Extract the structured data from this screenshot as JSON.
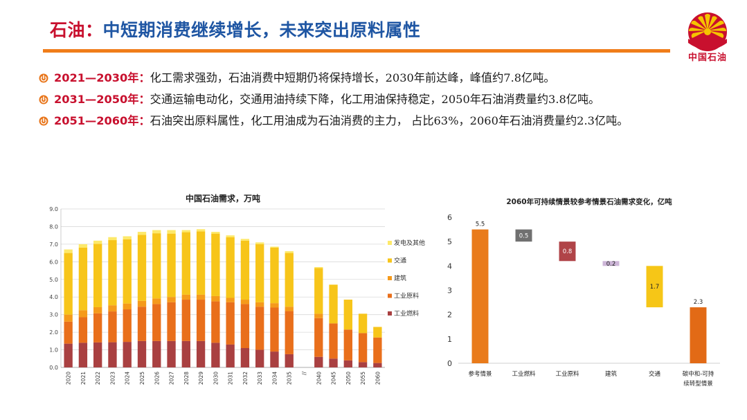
{
  "title": {
    "lead": "石油：",
    "rest": "中短期消费继续增长，未来突出原料属性"
  },
  "logo": {
    "text": "中国石油",
    "icon": "petrochina-logo-icon",
    "colors": {
      "red": "#c8102e",
      "yellow": "#f5c400"
    }
  },
  "bullets": [
    {
      "period": "2021—2030年：",
      "text": "化工需求强劲，石油消费中短期仍将保持增长，2030年前达峰，峰值约7.8亿吨。"
    },
    {
      "period": "2031—2050年：",
      "text": "交通运输电动化，交通用油持续下降，化工用油保持稳定，2050年石油消费量约3.8亿吨。"
    },
    {
      "period": "2051—2060年：",
      "text": "石油突出原料属性，化工用油成为石油消费的主力， 占比63%，2060年石油消费量约2.3亿吨。"
    }
  ],
  "colors": {
    "title_blue": "#1f56a3",
    "accent_red": "#c8102e",
    "rule_orange": "#f07d1a"
  },
  "chart_data": [
    {
      "type": "bar",
      "stacked": true,
      "title": "中国石油需求，万吨",
      "categories": [
        "2020",
        "2021",
        "2022",
        "2023",
        "2024",
        "2025",
        "2026",
        "2027",
        "2028",
        "2029",
        "2030",
        "2031",
        "2032",
        "2033",
        "2034",
        "2035",
        "//",
        "2040",
        "2045",
        "2050",
        "2055",
        "2060"
      ],
      "ylim": [
        0,
        9
      ],
      "yticks": [
        "0.0",
        "1.0",
        "2.0",
        "3.0",
        "4.0",
        "5.0",
        "6.0",
        "7.0",
        "8.0",
        "9.0"
      ],
      "grid": true,
      "legend_position": "right",
      "series": [
        {
          "name": "工业燃料",
          "color": "#a94041",
          "values": [
            1.35,
            1.4,
            1.42,
            1.43,
            1.45,
            1.5,
            1.5,
            1.5,
            1.5,
            1.5,
            1.4,
            1.3,
            1.1,
            1.0,
            0.9,
            0.75,
            null,
            0.6,
            0.5,
            0.4,
            0.3,
            0.25
          ]
        },
        {
          "name": "工业原料",
          "color": "#e96f1b",
          "values": [
            1.25,
            1.45,
            1.65,
            1.75,
            1.85,
            1.95,
            2.1,
            2.2,
            2.35,
            2.35,
            2.35,
            2.4,
            2.5,
            2.45,
            2.5,
            2.45,
            null,
            2.2,
            2.0,
            1.75,
            1.65,
            1.45
          ]
        },
        {
          "name": "建筑",
          "color": "#f59a1b",
          "values": [
            0.4,
            0.4,
            0.35,
            0.35,
            0.33,
            0.33,
            0.32,
            0.3,
            0.28,
            0.28,
            0.3,
            0.25,
            0.25,
            0.25,
            0.25,
            0.25,
            null,
            0.25,
            0.0,
            0.0,
            0.0,
            0.0
          ]
        },
        {
          "name": "交通",
          "color": "#f7c51a",
          "values": [
            3.5,
            3.55,
            3.6,
            3.7,
            3.65,
            3.75,
            3.7,
            3.6,
            3.55,
            3.6,
            3.55,
            3.45,
            3.35,
            3.3,
            3.15,
            3.05,
            null,
            2.6,
            2.2,
            1.7,
            1.1,
            0.6
          ]
        },
        {
          "name": "发电及其他",
          "color": "#fde96a",
          "values": [
            0.2,
            0.2,
            0.18,
            0.17,
            0.17,
            0.17,
            0.18,
            0.2,
            0.12,
            0.12,
            0.1,
            0.1,
            0.1,
            0.1,
            0.06,
            0.1,
            null,
            0.05,
            0.0,
            0.0,
            0.0,
            0.0
          ]
        }
      ]
    },
    {
      "type": "bar",
      "subtype": "waterfall",
      "title": "2060年可持续情景较参考情景石油需求变化，亿吨",
      "categories": [
        [
          "参考情景"
        ],
        [
          "工业燃料"
        ],
        [
          "工业原料"
        ],
        [
          "建筑"
        ],
        [
          "交通"
        ],
        [
          "碳中和-可持",
          "续转型情景"
        ]
      ],
      "ylim": [
        0,
        6
      ],
      "yticks": [
        "0",
        "1",
        "2",
        "3",
        "4",
        "5",
        "6"
      ],
      "grid": false,
      "bars": [
        {
          "label": "5.5",
          "bottom": 0.0,
          "top": 5.5,
          "color": "#e97b1b"
        },
        {
          "label": "0.5",
          "bottom": 5.0,
          "top": 5.5,
          "color": "#707070"
        },
        {
          "label": "0.8",
          "bottom": 4.2,
          "top": 5.0,
          "color": "#b04448"
        },
        {
          "label": "0.2",
          "bottom": 4.0,
          "top": 4.2,
          "color": "#cdb6d8"
        },
        {
          "label": "1.7",
          "bottom": 2.3,
          "top": 4.0,
          "color": "#f6c617"
        },
        {
          "label": "2.3",
          "bottom": 0.0,
          "top": 2.3,
          "color": "#e26a16"
        }
      ]
    }
  ]
}
